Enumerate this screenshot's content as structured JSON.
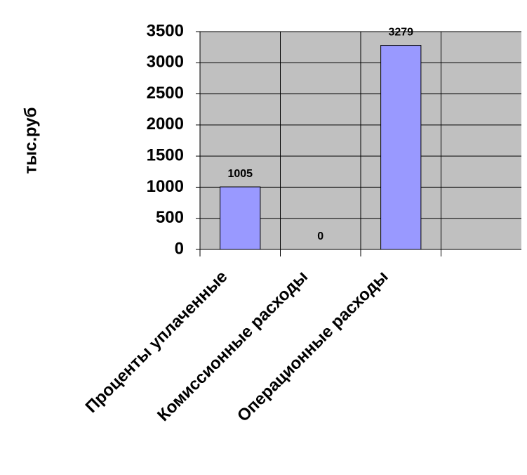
{
  "chart_data": {
    "type": "bar",
    "y_label": "тыс.руб",
    "categories": [
      "Проценты уплаченные",
      "Комиссионные расходы",
      "Операционные расходы",
      null
    ],
    "values": [
      1005,
      0,
      3279,
      null
    ],
    "color": "#9999ff",
    "ylim": [
      0,
      3500
    ],
    "yticks": [
      0,
      500,
      1000,
      1500,
      2000,
      2500,
      3000,
      3500
    ],
    "grid": true
  }
}
